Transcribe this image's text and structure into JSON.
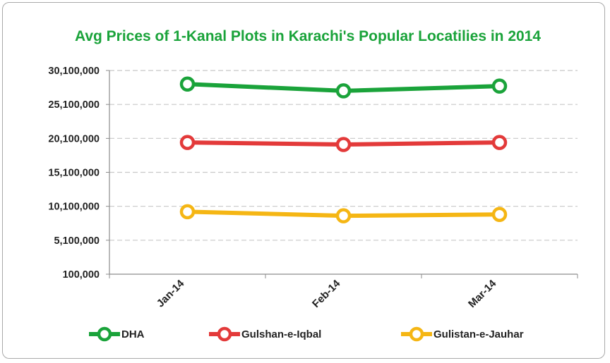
{
  "chart_data": {
    "type": "line",
    "title": "Avg Prices of 1-Kanal Plots in Karachi's Popular Locatilies in 2014",
    "categories": [
      "Jan-14",
      "Feb-14",
      "Mar-14"
    ],
    "yticks": [
      "100,000",
      "5,100,000",
      "10,100,000",
      "15,100,000",
      "20,100,000",
      "25,100,000",
      "30,100,000"
    ],
    "ylim": [
      100000,
      30100000
    ],
    "grid": true,
    "legend_position": "bottom",
    "series": [
      {
        "name": "DHA",
        "color": "#1aa33a",
        "values": [
          28100000,
          27100000,
          27800000
        ]
      },
      {
        "name": "Gulshan-e-Iqbal",
        "color": "#e33a3a",
        "values": [
          19500000,
          19200000,
          19500000
        ]
      },
      {
        "name": "Gulistan-e-Jauhar",
        "color": "#f5b614",
        "values": [
          9300000,
          8700000,
          8900000
        ]
      }
    ],
    "colors": {
      "title": "#1aa33a",
      "grid": "#c8c8c8",
      "axis": "#8c8c8c"
    }
  }
}
